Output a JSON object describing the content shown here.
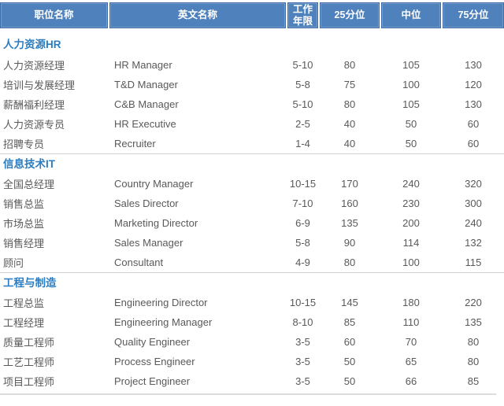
{
  "colors": {
    "header_bg": "#4f81bd",
    "header_border": "#3e6ca6",
    "header_text": "#ffffff",
    "section_title": "#2a7dc0",
    "body_text": "#595959",
    "divider": "#d3d3d3"
  },
  "table": {
    "columns": [
      {
        "label": "职位名称"
      },
      {
        "label": "英文名称"
      },
      {
        "label": "工作年限"
      },
      {
        "label": "25分位"
      },
      {
        "label": "中位"
      },
      {
        "label": "75分位"
      }
    ],
    "sections": [
      {
        "title": "人力资源HR",
        "rows": [
          [
            "人力资源经理",
            "HR Manager",
            "5-10",
            "80",
            "105",
            "130"
          ],
          [
            "培训与发展经理",
            "T&D Manager",
            "5-8",
            "75",
            "100",
            "120"
          ],
          [
            "薪酬福利经理",
            "C&B Manager",
            "5-10",
            "80",
            "105",
            "130"
          ],
          [
            "人力资源专员",
            "HR Executive",
            "2-5",
            "40",
            "50",
            "60"
          ],
          [
            "招聘专员",
            "Recruiter",
            "1-4",
            "40",
            "50",
            "60"
          ]
        ]
      },
      {
        "title": "信息技术IT",
        "rows": [
          [
            "全国总经理",
            "Country Manager",
            "10-15",
            "170",
            "240",
            "320"
          ],
          [
            "销售总监",
            "Sales Director",
            "7-10",
            "160",
            "230",
            "300"
          ],
          [
            "市场总监",
            "Marketing Director",
            "6-9",
            "135",
            "200",
            "240"
          ],
          [
            "销售经理",
            "Sales Manager",
            "5-8",
            "90",
            "114",
            "132"
          ],
          [
            "顾问",
            "Consultant",
            "4-9",
            "80",
            "100",
            "115"
          ]
        ]
      },
      {
        "title": "工程与制造",
        "rows": [
          [
            "工程总监",
            "Engineering Director",
            "10-15",
            "145",
            "180",
            "220"
          ],
          [
            "工程经理",
            "Engineering Manager",
            "8-10",
            "85",
            "110",
            "135"
          ],
          [
            "质量工程师",
            "Quality Engineer",
            "3-5",
            "60",
            "70",
            "80"
          ],
          [
            "工艺工程师",
            "Process Engineer",
            "3-5",
            "50",
            "65",
            "80"
          ],
          [
            "项目工程师",
            "Project Engineer",
            "3-5",
            "50",
            "66",
            "85"
          ]
        ]
      }
    ]
  }
}
